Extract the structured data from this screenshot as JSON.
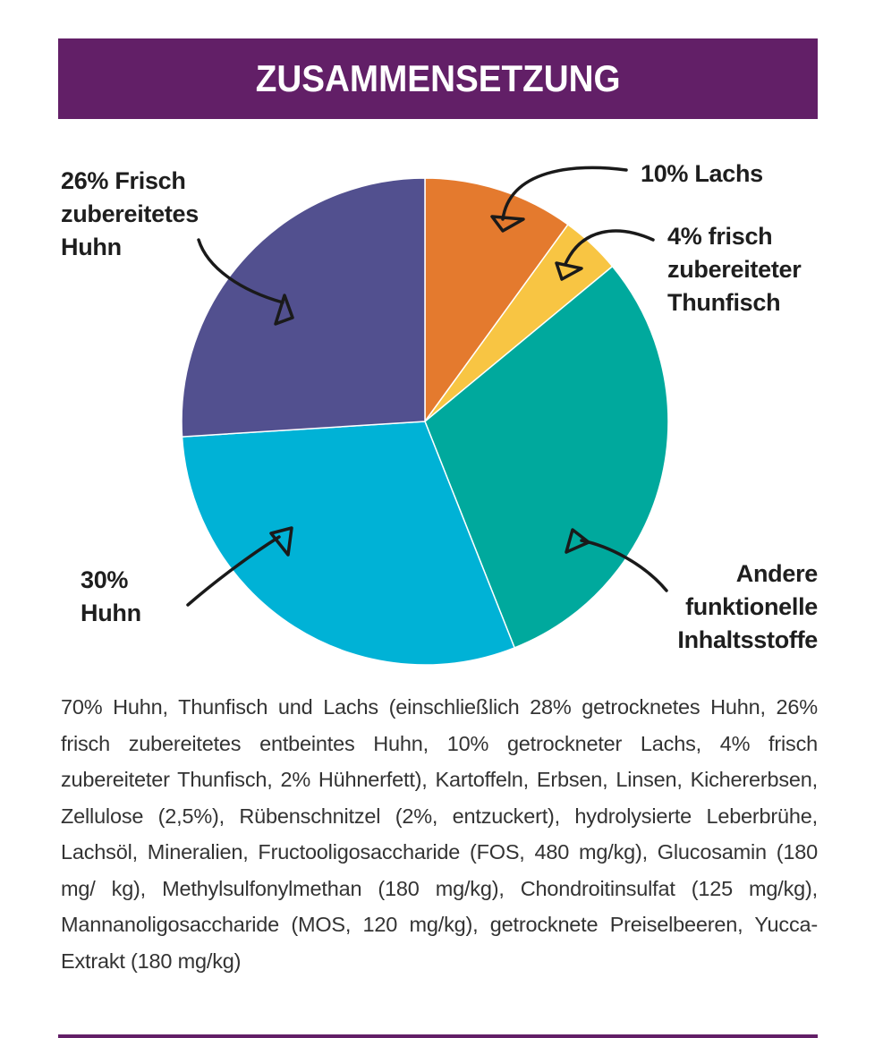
{
  "header": {
    "title": "ZUSAMMENSETZUNG",
    "color": "#621f67"
  },
  "chart_data": {
    "type": "pie",
    "start": "top",
    "direction": "clockwise",
    "slices": [
      {
        "label": "10% Lachs",
        "value": 10,
        "color": "#e47a2e"
      },
      {
        "label": "4% frisch zubereiteter Thunfisch",
        "value": 4,
        "color": "#f8c543"
      },
      {
        "label": "Andere funktionelle Inhaltsstoffe",
        "value": 30,
        "color": "#00a99d"
      },
      {
        "label": "30% Huhn",
        "value": 30,
        "color": "#00b2d6"
      },
      {
        "label": "26% Frisch zubereitetes Huhn",
        "value": 26,
        "color": "#52508f"
      }
    ],
    "labels": {
      "lachs": [
        "10% Lachs"
      ],
      "thunfisch": [
        "4% frisch",
        "zubereiteter",
        "Thunfisch"
      ],
      "andere": [
        "Andere",
        "funktionelle",
        "Inhaltsstoffe"
      ],
      "huhn": [
        "30%",
        "Huhn"
      ],
      "frisch_huhn": [
        "26% Frisch",
        "zubereitetes",
        "Huhn"
      ]
    }
  },
  "description": "70% Huhn, Thunfisch und Lachs  (einschließlich 28% getrocknetes Huhn, 26% frisch zubereitetes entbeintes Huhn, 10% getrockneter Lachs, 4% frisch zubereiteter Thunfisch, 2% Hühnerfett), Kartoffeln, Erbsen, Linsen, Kichererbsen, Zellulose (2,5%), Rübenschnitzel (2%, entzuckert), hydrolysierte Leberbrühe, Lachsöl, Mineralien, Fructooligosaccharide (FOS, 480 mg/kg), Glucosamin (180 mg/ kg), Methylsulfonylmethan (180 mg/kg), Chondroitinsulfat (125 mg/kg), Mannanoligosaccharide (MOS, 120 mg/kg), getrocknete Preiselbeeren, Yucca-Extrakt (180 mg/kg)"
}
